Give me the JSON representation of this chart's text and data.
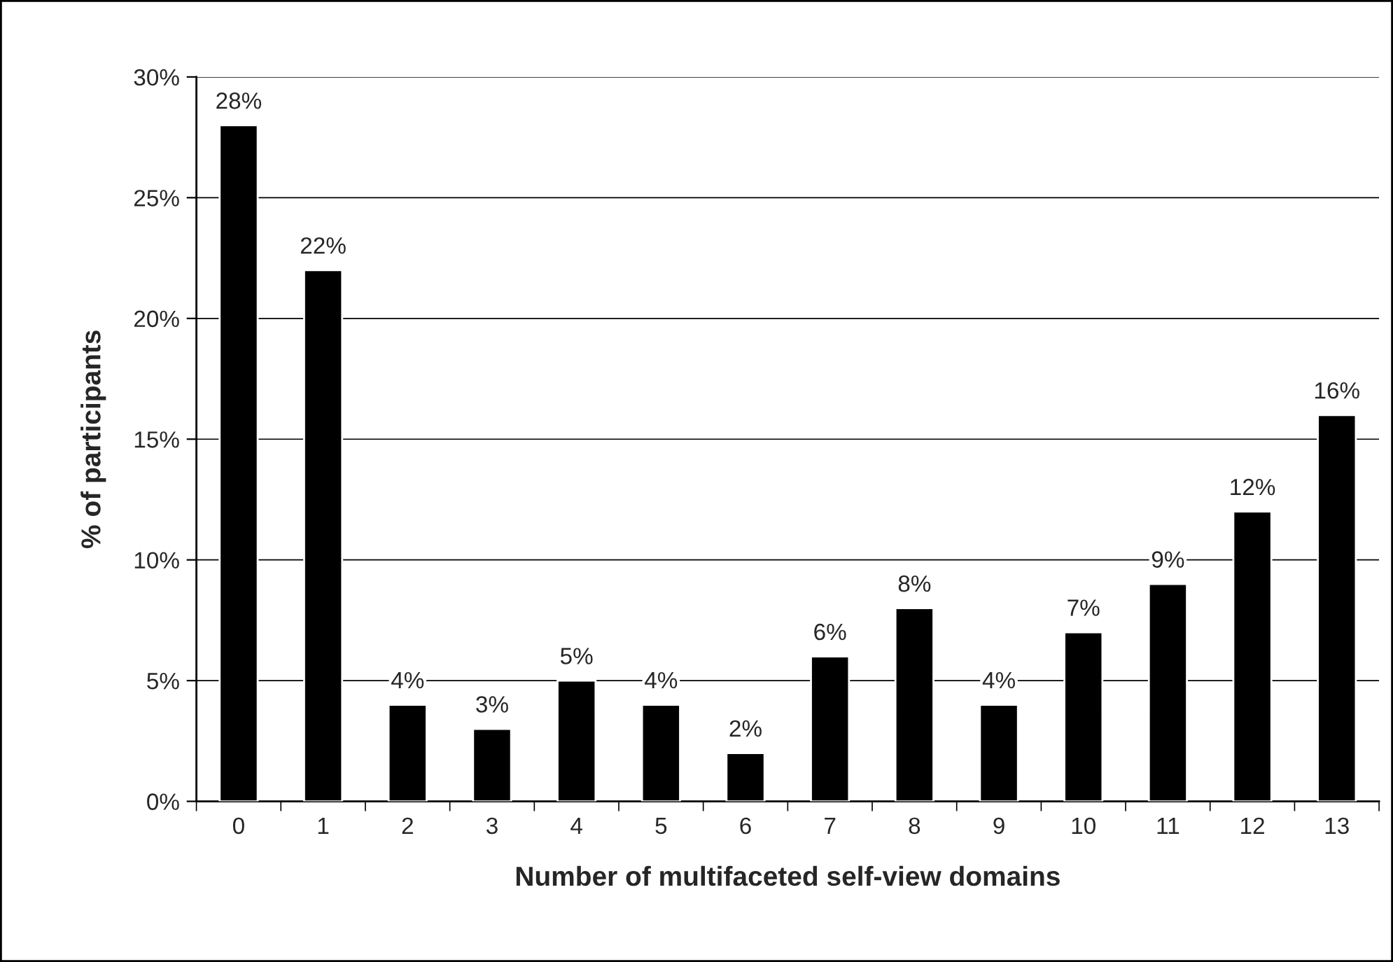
{
  "chart_data": {
    "type": "bar",
    "xlabel": "Number of multifaceted self-view domains",
    "ylabel": "% of participants",
    "categories": [
      "0",
      "1",
      "2",
      "3",
      "4",
      "5",
      "6",
      "7",
      "8",
      "9",
      "10",
      "11",
      "12",
      "13"
    ],
    "values": [
      28,
      22,
      4,
      3,
      5,
      4,
      2,
      6,
      8,
      4,
      7,
      9,
      12,
      16
    ],
    "value_labels": [
      "28%",
      "22%",
      "4%",
      "3%",
      "5%",
      "4%",
      "2%",
      "6%",
      "8%",
      "4%",
      "7%",
      "9%",
      "12%",
      "16%"
    ],
    "color": "#000000",
    "ylim": [
      0,
      30
    ],
    "yticks": [
      {
        "value": 0,
        "label": "0%"
      },
      {
        "value": 5,
        "label": "5%"
      },
      {
        "value": 10,
        "label": "10%"
      },
      {
        "value": 15,
        "label": "15%"
      },
      {
        "value": 20,
        "label": "20%"
      },
      {
        "value": 25,
        "label": "25%"
      },
      {
        "value": 30,
        "label": "30%"
      }
    ],
    "grid": "y",
    "legend": false
  }
}
